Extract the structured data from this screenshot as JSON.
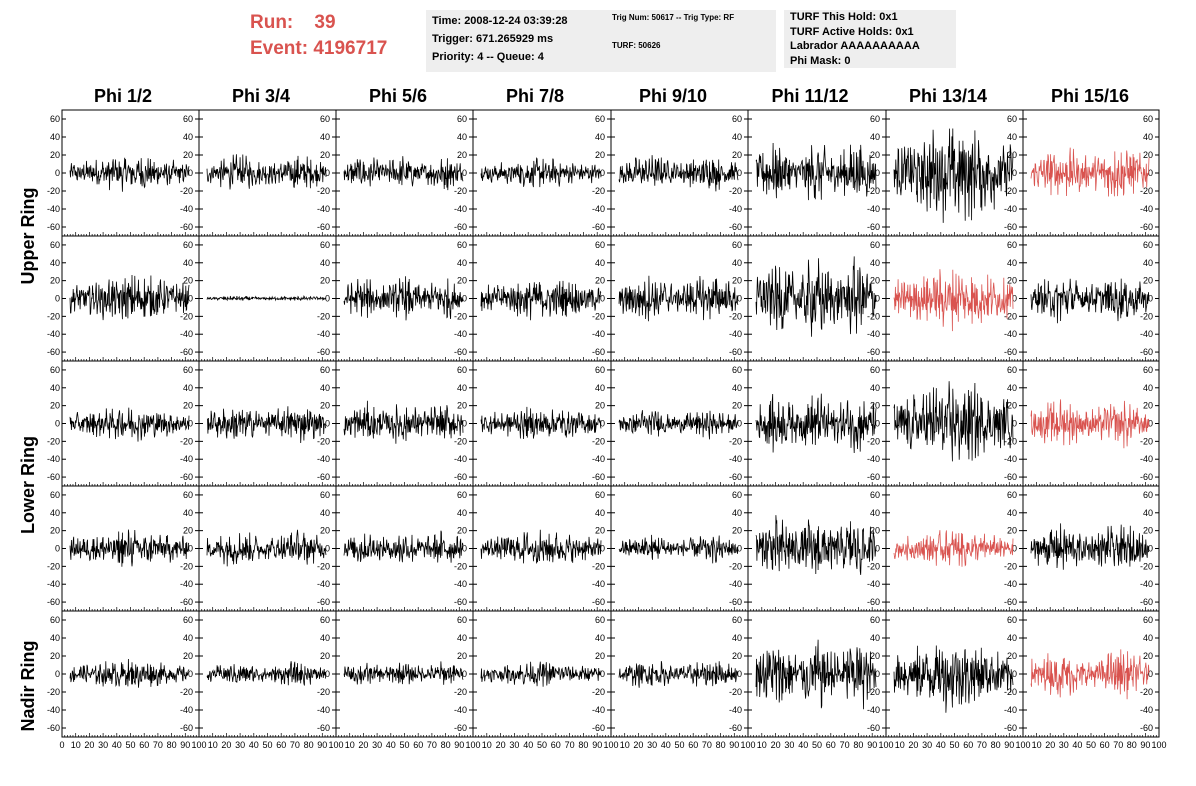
{
  "header": {
    "run_label": "Run:",
    "run_value": "39",
    "event_label": "Event:",
    "event_value": "4196717"
  },
  "info1": {
    "time": "Time: 2008-12-24 03:39:28",
    "trigger": "Trigger: 671.265929 ms",
    "priority": "Priority: 4 -- Queue: 4"
  },
  "info2": {
    "trig": "Trig Num: 50617 -- Trig Type: RF",
    "turf": "TURF: 50626"
  },
  "info3": {
    "this_hold": "TURF This Hold: 0x1",
    "active_holds": "TURF Active Holds: 0x1",
    "labrador": "Labrador AAAAAAAAAA",
    "phi_mask": "Phi Mask: 0"
  },
  "columns": [
    "Phi 1/2",
    "Phi 3/4",
    "Phi 5/6",
    "Phi 7/8",
    "Phi 9/10",
    "Phi 11/12",
    "Phi 13/14",
    "Phi 15/16"
  ],
  "row_labels": {
    "upper": "Upper Ring",
    "lower": "Lower Ring",
    "nadir": "Nadir Ring"
  },
  "y_ticks": [
    "60",
    "40",
    "20",
    "0",
    "-20",
    "-40",
    "-60"
  ],
  "x_ticks": [
    "0",
    "10",
    "20",
    "30",
    "40",
    "50",
    "60",
    "70",
    "80",
    "90",
    "100"
  ],
  "colors": {
    "header_red": "#d9534f",
    "trace_black": "#000000",
    "trace_red": "#d9534f",
    "info_bg": "#eeeeee"
  },
  "chart_data": {
    "type": "line",
    "title": "",
    "xlabel": "",
    "ylabel": "",
    "xlim": [
      0,
      100
    ],
    "ylim": [
      -70,
      70
    ],
    "grid": false,
    "panel_rows": 5,
    "panel_cols": 8,
    "panel_amplitudes": [
      [
        15,
        15,
        15,
        12,
        15,
        25,
        40,
        22
      ],
      [
        20,
        2,
        18,
        18,
        20,
        35,
        25,
        20
      ],
      [
        14,
        16,
        18,
        14,
        12,
        25,
        35,
        20
      ],
      [
        16,
        15,
        15,
        15,
        12,
        28,
        15,
        20
      ],
      [
        12,
        10,
        10,
        10,
        12,
        30,
        30,
        20
      ]
    ],
    "red_panels": [
      [
        0,
        7
      ],
      [
        1,
        6
      ],
      [
        2,
        7
      ],
      [
        3,
        6
      ],
      [
        4,
        7
      ]
    ]
  }
}
